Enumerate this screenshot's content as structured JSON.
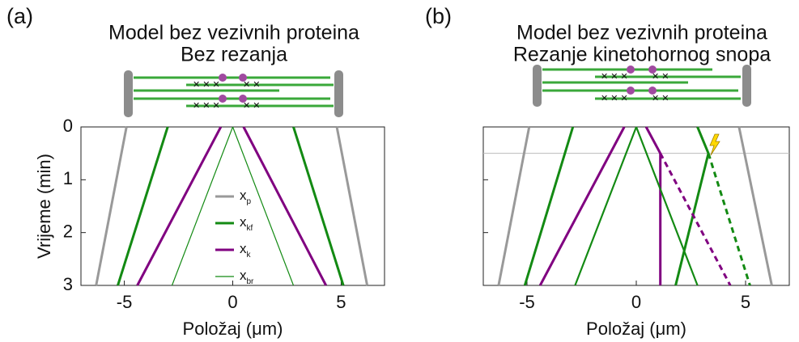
{
  "panel_labels": [
    "(a)",
    "(b)"
  ],
  "chart_data": [
    {
      "type": "line",
      "title": [
        "Model bez vezivnih proteina",
        "Bez rezanja"
      ],
      "xlabel": "Položaj (μm)",
      "ylabel": "Vrijeme (min)",
      "xlim": [
        -7,
        7
      ],
      "ylim": [
        0,
        3
      ],
      "y_inverted": true,
      "xticks": [
        -5,
        0,
        5
      ],
      "yticks": [
        0,
        1,
        2,
        3
      ],
      "ytick_labels": true,
      "series": [
        {
          "name": "x",
          "subscript": "p",
          "color": "#999999",
          "width": 3,
          "segments": [
            {
              "x": [
                -4.9,
                -6.3
              ],
              "y": [
                0,
                3
              ]
            },
            {
              "x": [
                4.8,
                6.2
              ],
              "y": [
                0,
                3
              ]
            }
          ]
        },
        {
          "name": "x",
          "subscript": "kf",
          "color": "#138a13",
          "width": 3,
          "segments": [
            {
              "x": [
                -3.0,
                -5.3
              ],
              "y": [
                0,
                3
              ]
            },
            {
              "x": [
                2.8,
                5.1
              ],
              "y": [
                0,
                3
              ]
            }
          ]
        },
        {
          "name": "x",
          "subscript": "k",
          "color": "#800080",
          "width": 3,
          "segments": [
            {
              "x": [
                -0.55,
                -4.4
              ],
              "y": [
                0,
                3
              ]
            },
            {
              "x": [
                0.5,
                4.3
              ],
              "y": [
                0,
                3
              ]
            }
          ]
        },
        {
          "name": "x",
          "subscript": "br",
          "color": "#138a13",
          "width": 1.2,
          "segments": [
            {
              "x": [
                0,
                -2.8
              ],
              "y": [
                0,
                3
              ]
            },
            {
              "x": [
                0,
                2.8
              ],
              "y": [
                0,
                3
              ]
            }
          ]
        }
      ]
    },
    {
      "type": "line",
      "title": [
        "Model bez vezivnih proteina",
        "Rezanje kinetohornog snopa"
      ],
      "xlabel": "Položaj (μm)",
      "xlim": [
        -7,
        7
      ],
      "ylim": [
        0,
        3
      ],
      "y_inverted": true,
      "xticks": [
        -5,
        0,
        5
      ],
      "yticks": [
        0,
        1,
        2,
        3
      ],
      "ytick_labels": false,
      "cut_time": 0.5,
      "series": [
        {
          "color": "#999999",
          "width": 3,
          "segments": [
            {
              "x": [
                -4.9,
                -6.3
              ],
              "y": [
                0,
                3
              ]
            },
            {
              "x": [
                4.7,
                6.2
              ],
              "y": [
                0,
                3
              ]
            }
          ]
        },
        {
          "color": "#138a13",
          "width": 3,
          "segments": [
            {
              "x": [
                -2.9,
                -5.1
              ],
              "y": [
                0,
                3
              ]
            },
            {
              "x": [
                2.8,
                3.3
              ],
              "y": [
                0,
                0.5
              ]
            },
            {
              "x": [
                3.3,
                1.8
              ],
              "y": [
                0.5,
                3
              ]
            }
          ]
        },
        {
          "color": "#138a13",
          "width": 3,
          "dash": true,
          "segments": [
            {
              "x": [
                3.3,
                5.2
              ],
              "y": [
                0.5,
                3
              ]
            }
          ]
        },
        {
          "color": "#800080",
          "width": 3,
          "segments": [
            {
              "x": [
                -0.55,
                -4.4
              ],
              "y": [
                0,
                3
              ]
            },
            {
              "x": [
                0.45,
                1.1
              ],
              "y": [
                0,
                0.5
              ]
            },
            {
              "x": [
                1.1,
                1.1
              ],
              "y": [
                0.5,
                3
              ]
            }
          ]
        },
        {
          "color": "#800080",
          "width": 3,
          "dash": true,
          "segments": [
            {
              "x": [
                1.1,
                4.3
              ],
              "y": [
                0.5,
                3
              ]
            }
          ]
        },
        {
          "color": "#138a13",
          "width": 2.2,
          "segments": [
            {
              "x": [
                0,
                -2.8
              ],
              "y": [
                0,
                3
              ]
            },
            {
              "x": [
                0,
                2.8
              ],
              "y": [
                0,
                3
              ]
            }
          ]
        }
      ]
    }
  ]
}
